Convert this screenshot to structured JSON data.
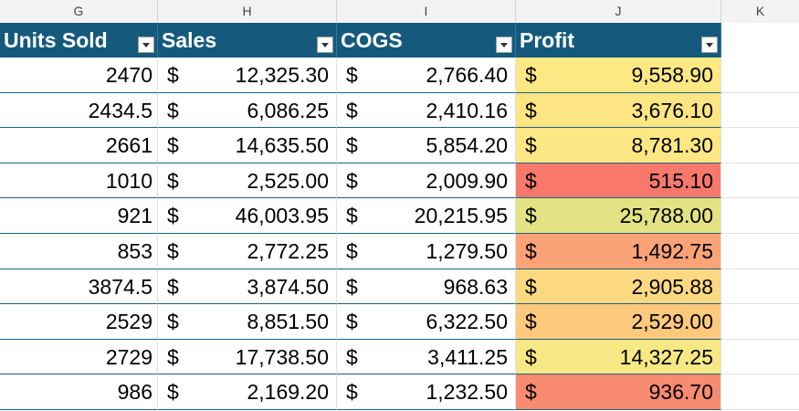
{
  "columns": [
    "G",
    "H",
    "I",
    "J",
    "K"
  ],
  "headers": {
    "units_sold": "Units Sold",
    "sales": "Sales",
    "cogs": "COGS",
    "profit": "Profit"
  },
  "currency_symbol": "$",
  "rows": [
    {
      "units": "2470",
      "sales": "12,325.30",
      "cogs": "2,766.40",
      "profit": "9,558.90",
      "profit_color": "#fde884"
    },
    {
      "units": "2434.5",
      "sales": "6,086.25",
      "cogs": "2,410.16",
      "profit": "3,676.10",
      "profit_color": "#fde583"
    },
    {
      "units": "2661",
      "sales": "14,635.50",
      "cogs": "5,854.20",
      "profit": "8,781.30",
      "profit_color": "#fde784"
    },
    {
      "units": "1010",
      "sales": "2,525.00",
      "cogs": "2,009.90",
      "profit": "515.10",
      "profit_color": "#f8786c"
    },
    {
      "units": "921",
      "sales": "46,003.95",
      "cogs": "20,215.95",
      "profit": "25,788.00",
      "profit_color": "#e4e383"
    },
    {
      "units": "853",
      "sales": "2,772.25",
      "cogs": "1,279.50",
      "profit": "1,492.75",
      "profit_color": "#fba276"
    },
    {
      "units": "3874.5",
      "sales": "3,874.50",
      "cogs": "968.63",
      "profit": "2,905.88",
      "profit_color": "#fcd880"
    },
    {
      "units": "2529",
      "sales": "8,851.50",
      "cogs": "6,322.50",
      "profit": "2,529.00",
      "profit_color": "#fdc97d"
    },
    {
      "units": "2729",
      "sales": "17,738.50",
      "cogs": "3,411.25",
      "profit": "14,327.25",
      "profit_color": "#f6e884"
    },
    {
      "units": "986",
      "sales": "2,169.20",
      "cogs": "1,232.50",
      "profit": "936.70",
      "profit_color": "#f98b70"
    }
  ]
}
